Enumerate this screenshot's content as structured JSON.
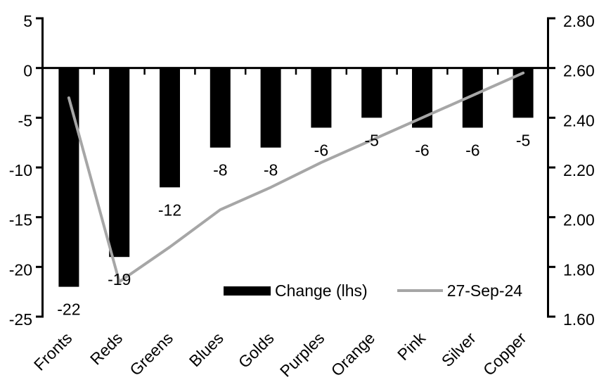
{
  "chart_data": {
    "type": "bar",
    "title": "",
    "xlabel": "",
    "ylabel_left": "",
    "ylabel_right": "",
    "grid": "off",
    "legend_position": "bottom-center",
    "categories": [
      "Fronts",
      "Reds",
      "Greens",
      "Blues",
      "Golds",
      "Purples",
      "Orange",
      "Pink",
      "Silver",
      "Copper"
    ],
    "series": [
      {
        "name": "Change (lhs)",
        "type": "bar",
        "axis": "left",
        "values": [
          -22,
          -19,
          -12,
          -8,
          -8,
          -6,
          -5,
          -6,
          -6,
          -5
        ],
        "labels": [
          "-22",
          "-19",
          "-12",
          "-8",
          "-8",
          "-6",
          "-5",
          "-6",
          "-6",
          "-5"
        ]
      },
      {
        "name": "27-Sep-24",
        "type": "line",
        "axis": "right",
        "values": [
          2.48,
          1.74,
          1.88,
          2.03,
          2.12,
          2.22,
          2.31,
          2.4,
          2.49,
          2.58
        ]
      }
    ],
    "left_axis": {
      "min": -25,
      "max": 5,
      "step": 5,
      "ticks": [
        "5",
        "0",
        "-5",
        "-10",
        "-15",
        "-20",
        "-25"
      ]
    },
    "right_axis": {
      "min": 1.6,
      "max": 2.8,
      "step": 0.2,
      "ticks": [
        "2.80",
        "2.60",
        "2.40",
        "2.20",
        "2.00",
        "1.80",
        "1.60"
      ]
    }
  },
  "colors": {
    "bar": "#000000",
    "line": "#a6a6a6",
    "axis": "#000000",
    "text": "#000000",
    "background": "#ffffff"
  }
}
